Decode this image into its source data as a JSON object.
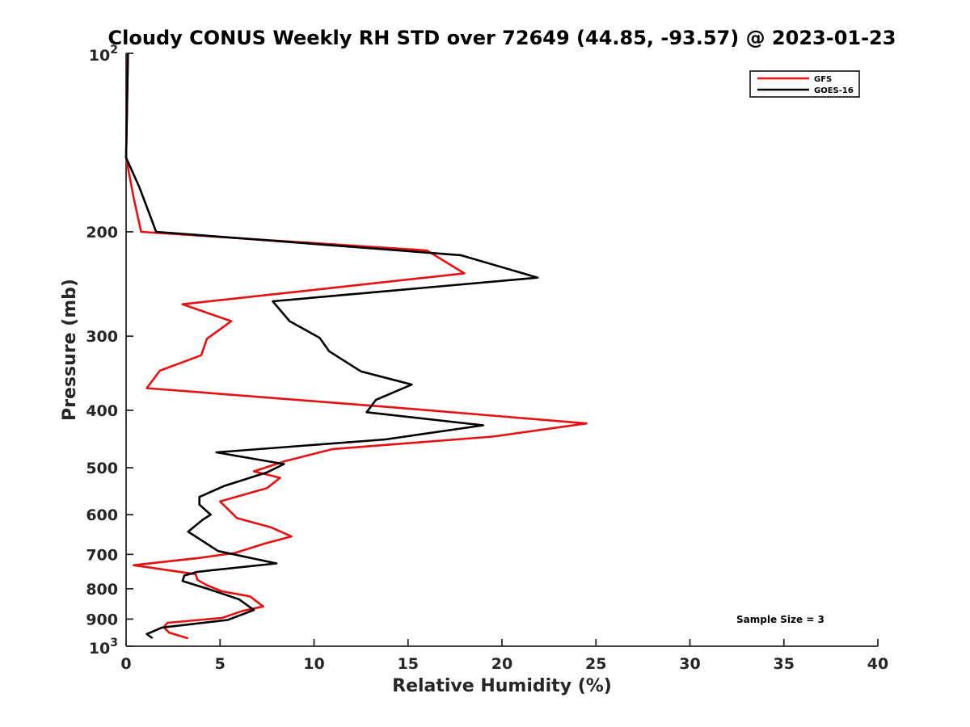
{
  "chart_data": {
    "type": "line",
    "title": "Cloudy CONUS Weekly RH STD over 72649 (44.85, -93.57) @ 2023-01-23",
    "xlabel": "Relative Humidity (%)",
    "ylabel": "Pressure (mb)",
    "xlim": [
      0,
      40
    ],
    "ylim": [
      100,
      1000
    ],
    "y_scale": "log",
    "y_reversed": true,
    "grid": false,
    "legend_position": "top-right",
    "x_ticks": [
      "0",
      "5",
      "10",
      "15",
      "20",
      "25",
      "30",
      "35",
      "40"
    ],
    "y_ticks": [
      {
        "value": 200,
        "label": "200"
      },
      {
        "value": 300,
        "label": "300"
      },
      {
        "value": 400,
        "label": "400"
      },
      {
        "value": 500,
        "label": "500"
      },
      {
        "value": 600,
        "label": "600"
      },
      {
        "value": 700,
        "label": "700"
      },
      {
        "value": 800,
        "label": "800"
      },
      {
        "value": 900,
        "label": "900"
      }
    ],
    "y_end_ticks": [
      {
        "value": 100,
        "base": "10",
        "exp": "2"
      },
      {
        "value": 1000,
        "base": "10",
        "exp": "3"
      }
    ],
    "annotation": "Sample Size = 3",
    "series": [
      {
        "name": "GFS",
        "color": "#e8100f",
        "points": [
          [
            0.1,
            100
          ],
          [
            0.0,
            150
          ],
          [
            0.4,
            175
          ],
          [
            0.8,
            200
          ],
          [
            16.0,
            215
          ],
          [
            18.0,
            235
          ],
          [
            3.0,
            265
          ],
          [
            5.6,
            283
          ],
          [
            4.3,
            303
          ],
          [
            4.0,
            323
          ],
          [
            1.8,
            343
          ],
          [
            1.1,
            367
          ],
          [
            14.0,
            395
          ],
          [
            24.5,
            421
          ],
          [
            19.5,
            443
          ],
          [
            11.0,
            465
          ],
          [
            8.5,
            487
          ],
          [
            6.8,
            507
          ],
          [
            8.2,
            520
          ],
          [
            7.5,
            541
          ],
          [
            5.0,
            570
          ],
          [
            5.9,
            608
          ],
          [
            7.7,
            630
          ],
          [
            8.8,
            653
          ],
          [
            7.4,
            671
          ],
          [
            5.8,
            696
          ],
          [
            4.0,
            709
          ],
          [
            0.4,
            730
          ],
          [
            3.7,
            756
          ],
          [
            3.8,
            773
          ],
          [
            4.3,
            789
          ],
          [
            5.1,
            808
          ],
          [
            6.6,
            824
          ],
          [
            7.3,
            857
          ],
          [
            6.2,
            872
          ],
          [
            5.1,
            896
          ],
          [
            2.2,
            913
          ],
          [
            2.0,
            929
          ],
          [
            2.3,
            949
          ],
          [
            3.3,
            970
          ]
        ]
      },
      {
        "name": "GOES-16",
        "color": "#000000",
        "points": [
          [
            0.1,
            100
          ],
          [
            0.0,
            150
          ],
          [
            0.7,
            168
          ],
          [
            1.6,
            200
          ],
          [
            17.8,
            219
          ],
          [
            21.9,
            239
          ],
          [
            7.8,
            262
          ],
          [
            8.7,
            283
          ],
          [
            10.3,
            302
          ],
          [
            10.8,
            318
          ],
          [
            12.5,
            344
          ],
          [
            15.2,
            362
          ],
          [
            13.3,
            384
          ],
          [
            12.8,
            403
          ],
          [
            19.0,
            424
          ],
          [
            13.8,
            448
          ],
          [
            4.8,
            471
          ],
          [
            8.4,
            493
          ],
          [
            7.5,
            509
          ],
          [
            5.2,
            537
          ],
          [
            3.9,
            560
          ],
          [
            3.9,
            577
          ],
          [
            4.5,
            600
          ],
          [
            4.1,
            611
          ],
          [
            3.3,
            641
          ],
          [
            4.9,
            691
          ],
          [
            8.0,
            725
          ],
          [
            3.8,
            749
          ],
          [
            3.1,
            760
          ],
          [
            3.0,
            776
          ],
          [
            4.5,
            803
          ],
          [
            6.0,
            833
          ],
          [
            6.8,
            869
          ],
          [
            5.4,
            903
          ],
          [
            1.9,
            930
          ],
          [
            1.1,
            954
          ],
          [
            1.4,
            969
          ]
        ]
      }
    ]
  }
}
